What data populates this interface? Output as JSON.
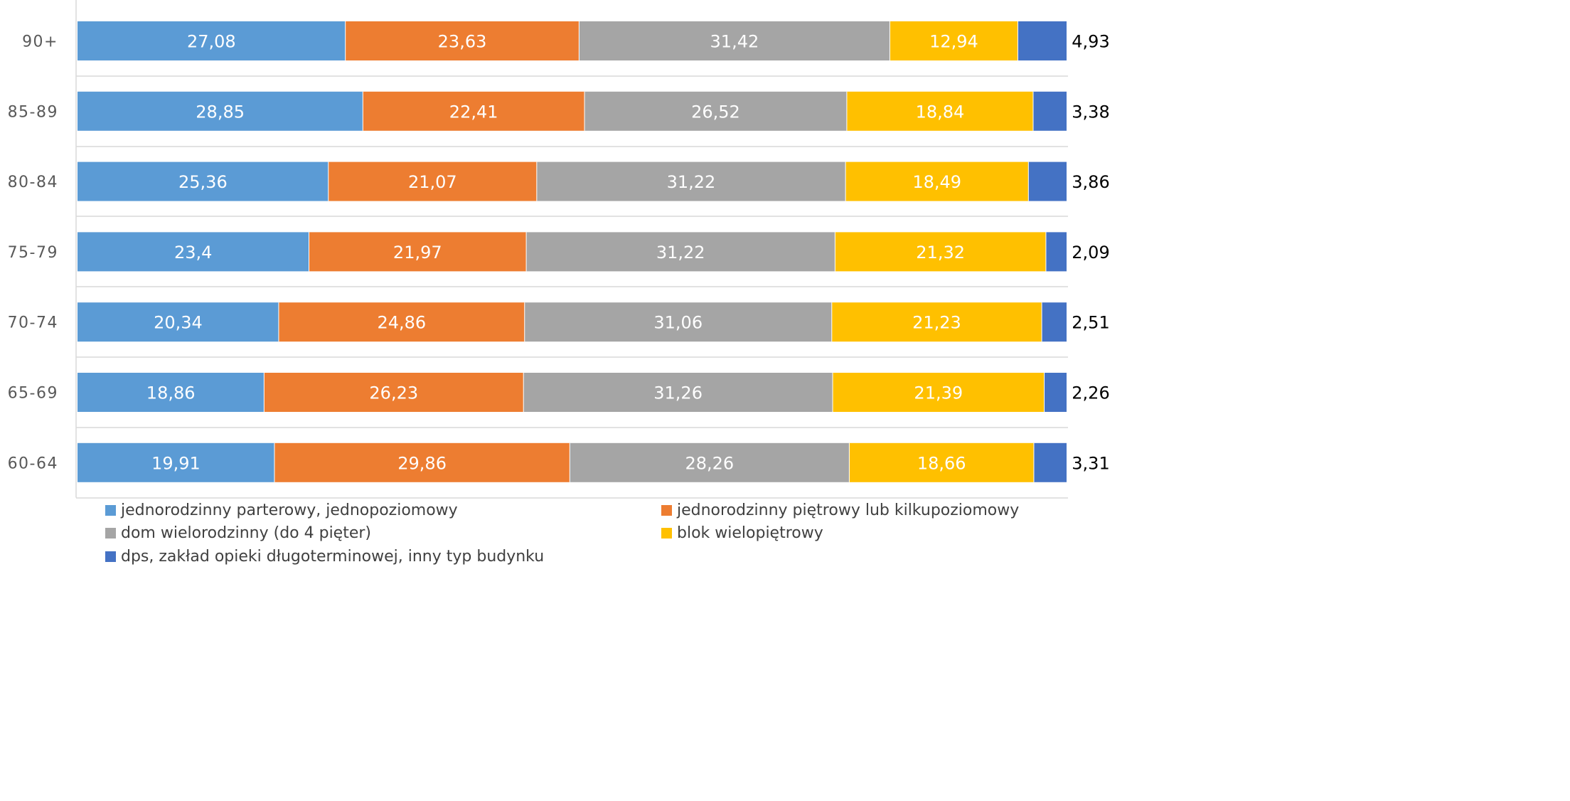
{
  "chart_data": {
    "type": "bar",
    "orientation": "horizontal",
    "stacking": "percent",
    "categories": [
      "90+",
      "85-89",
      "80-84",
      "75-79",
      "70-74",
      "65-69",
      "60-64"
    ],
    "categories_display": [
      "90+",
      "85-89",
      "80-84",
      "75-79",
      "70-74",
      "65-69",
      "60-64"
    ],
    "series": [
      {
        "name": "jednorodzinny parterowy, jednopoziomowy",
        "color": "#5B9BD5",
        "values": [
          27.08,
          28.85,
          25.36,
          23.4,
          20.34,
          18.86,
          19.91
        ],
        "labels": [
          "27,08",
          "28,85",
          "25,36",
          "23,4",
          "20,34",
          "18,86",
          "19,91"
        ]
      },
      {
        "name": "jednorodzinny piętrowy lub kilkupoziomowy",
        "color": "#ED7D31",
        "values": [
          23.63,
          22.41,
          21.07,
          21.97,
          24.86,
          26.23,
          29.86
        ],
        "labels": [
          "23,63",
          "22,41",
          "21,07",
          "21,97",
          "24,86",
          "26,23",
          "29,86"
        ]
      },
      {
        "name": "dom wielorodzinny (do 4 pięter)",
        "color": "#A5A5A5",
        "values": [
          31.42,
          26.52,
          31.22,
          31.22,
          31.06,
          31.26,
          28.26
        ],
        "labels": [
          "31,42",
          "26,52",
          "31,22",
          "31,22",
          "31,06",
          "31,26",
          "28,26"
        ]
      },
      {
        "name": "blok wielopiętrowy",
        "color": "#FFC000",
        "values": [
          12.94,
          18.84,
          18.49,
          21.32,
          21.23,
          21.39,
          18.66
        ],
        "labels": [
          "12,94",
          "18,84",
          "18,49",
          "21,32",
          "21,23",
          "21,39",
          "18,66"
        ]
      },
      {
        "name": "dps, zakład opieki długoterminowej, inny typ budynku",
        "color": "#4472C4",
        "values": [
          4.93,
          3.38,
          3.86,
          2.09,
          2.51,
          2.26,
          3.31
        ],
        "labels": [
          "4,93",
          "3,38",
          "3,86",
          "2,09",
          "2,51",
          "2,26",
          "3,31"
        ]
      }
    ],
    "legend_position": "bottom",
    "grid": true,
    "gridline_color": "#D9D9D9"
  }
}
